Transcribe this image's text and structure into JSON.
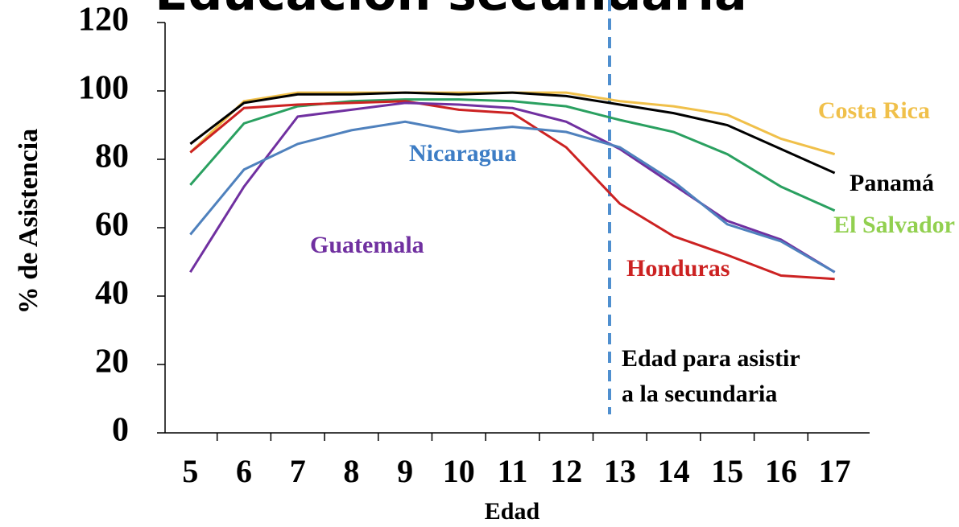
{
  "chart_data": {
    "type": "line",
    "title": "Educación secundaria",
    "x_label": "Edad",
    "y_label": "% de Asistencia",
    "categories": [
      "5",
      "6",
      "7",
      "8",
      "9",
      "10",
      "11",
      "12",
      "13",
      "14",
      "15",
      "16",
      "17"
    ],
    "ylim": [
      0,
      120
    ],
    "yticks": [
      0,
      20,
      40,
      60,
      80,
      100,
      120
    ],
    "annotation": [
      "Edad para asistir",
      "a la secundaria"
    ],
    "series": [
      {
        "name": "Costa Rica",
        "color": "#f0c04a",
        "label_color": "#f0c04a",
        "values": [
          82,
          97,
          99.5,
          99.5,
          99.5,
          99.5,
          99.5,
          99.5,
          97,
          95.5,
          93,
          86,
          81.5
        ]
      },
      {
        "name": "Panamá",
        "color": "#000000",
        "label_color": "#000000",
        "values": [
          84.5,
          96.5,
          99,
          99,
          99.5,
          99,
          99.5,
          98.5,
          96,
          93.5,
          90,
          83,
          76
        ]
      },
      {
        "name": "El Salvador",
        "color": "#2aa060",
        "label_color": "#92d050",
        "values": [
          72.5,
          90.5,
          95.5,
          97,
          97.5,
          97.5,
          97,
          95.5,
          91.5,
          88,
          81.5,
          72,
          65
        ]
      },
      {
        "name": "Honduras",
        "color": "#cc2222",
        "label_color": "#cc2222",
        "values": [
          82,
          95,
          96,
          96.5,
          97,
          94.5,
          93.5,
          83.5,
          67,
          57.5,
          52,
          46,
          45
        ]
      },
      {
        "name": "Guatemala",
        "color": "#7030a0",
        "label_color": "#7030a0",
        "values": [
          47,
          72,
          92.5,
          94.5,
          96.5,
          96,
          95,
          91,
          83,
          72.5,
          62,
          56.5,
          47
        ]
      },
      {
        "name": "Nicaragua",
        "color": "#4f81bd",
        "label_color": "#3d7dc5",
        "values": [
          58,
          77,
          84.5,
          88.5,
          91,
          88,
          89.5,
          88,
          83.5,
          73.5,
          61,
          56,
          47
        ]
      }
    ]
  }
}
